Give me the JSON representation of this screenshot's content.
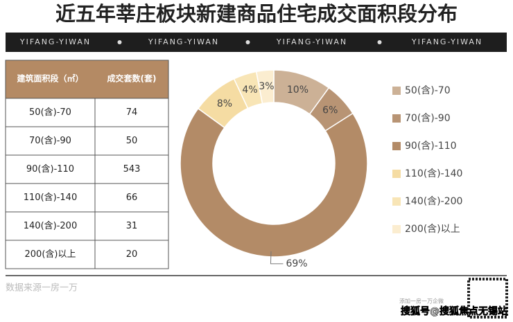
{
  "title": "近五年莘庄板块新建商品住宅成交面积段分布",
  "banner": [
    "YIFANG-YIWAN",
    "YIFANG-YIWAN",
    "YIFANG-YIWAN",
    "YIFANG-YIWAN"
  ],
  "table": {
    "header": [
      "建筑面积段（㎡）",
      "成交套数(套)"
    ],
    "rows": [
      [
        "50(含)-70",
        "74"
      ],
      [
        "70(含)-90",
        "50"
      ],
      [
        "90(含)-110",
        "543"
      ],
      [
        "110(含)-140",
        "66"
      ],
      [
        "140(含)-200",
        "31"
      ],
      [
        "200(含)以上",
        "20"
      ]
    ]
  },
  "chart_data": {
    "type": "pie",
    "categories": [
      "50(含)-70",
      "70(含)-90",
      "90(含)-110",
      "110(含)-140",
      "140(含)-200",
      "200(含)以上"
    ],
    "values": [
      10,
      6,
      69,
      8,
      4,
      3
    ],
    "value_labels": [
      "10%",
      "6%",
      "69%",
      "8%",
      "4%",
      "3%"
    ],
    "colors": [
      "#ccb196",
      "#b89474",
      "#b38b67",
      "#f5dca3",
      "#f8e5b6",
      "#fbedd0"
    ]
  },
  "footer": {
    "source": "数据来源一房一万",
    "qr_caption": "添加一房一万企微",
    "credit": "搜狐号@搜狐焦点无锡站"
  }
}
